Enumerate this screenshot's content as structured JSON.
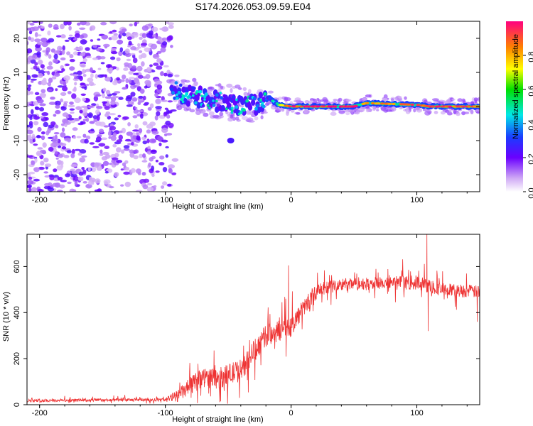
{
  "title": "S174.2026.053.09.59.E04",
  "chart_data": [
    {
      "type": "heatmap",
      "name": "spectrogram",
      "xlabel": "Height of straight line (km)",
      "ylabel": "Frequency (Hz)",
      "xlim": [
        -210,
        150
      ],
      "ylim": [
        -25,
        25
      ],
      "xticks": [
        -200,
        -100,
        0,
        100
      ],
      "yticks": [
        -20,
        -10,
        0,
        10,
        20
      ],
      "colorbar": {
        "label": "Normalized spectral amplitude",
        "range": [
          0,
          1
        ],
        "ticks": [
          0.0,
          0.2,
          0.4,
          0.6,
          0.8
        ],
        "tick_labels": [
          "0.0",
          "0.2",
          "0.4",
          "0.6",
          "0.8"
        ]
      },
      "noise_region_x": [
        -210,
        -95
      ],
      "signal_track": [
        {
          "x": -95,
          "y": 5,
          "amp": 0.3
        },
        {
          "x": -85,
          "y": 4,
          "amp": 0.35
        },
        {
          "x": -75,
          "y": 3,
          "amp": 0.35
        },
        {
          "x": -65,
          "y": 2,
          "amp": 0.3
        },
        {
          "x": -55,
          "y": 1.5,
          "amp": 0.25
        },
        {
          "x": -45,
          "y": 1,
          "amp": 0.3
        },
        {
          "x": -35,
          "y": 0.5,
          "amp": 0.4
        },
        {
          "x": -28,
          "y": 0,
          "amp": 0.45
        },
        {
          "x": -18,
          "y": 2.5,
          "amp": 0.5
        },
        {
          "x": -10,
          "y": 0.5,
          "amp": 0.6
        },
        {
          "x": 0,
          "y": 0,
          "amp": 0.85
        },
        {
          "x": 50,
          "y": 0,
          "amp": 0.9
        },
        {
          "x": 60,
          "y": 1,
          "amp": 0.75
        },
        {
          "x": 100,
          "y": 0.5,
          "amp": 0.8
        },
        {
          "x": 110,
          "y": 0,
          "amp": 0.85
        },
        {
          "x": 150,
          "y": 0,
          "amp": 0.8
        }
      ],
      "side_blob": {
        "x": -48,
        "y": -10,
        "amp": 0.25
      }
    },
    {
      "type": "line",
      "name": "snr",
      "xlabel": "Height of straight line (km)",
      "ylabel": "SNR (10 * v/v)",
      "xlim": [
        -210,
        150
      ],
      "ylim": [
        0,
        740
      ],
      "xticks": [
        -200,
        -100,
        0,
        100
      ],
      "yticks": [
        0,
        200,
        400,
        600
      ],
      "color": "#ee3333",
      "envelope": {
        "x": [
          -210,
          -100,
          -90,
          -80,
          -70,
          -60,
          -50,
          -40,
          -30,
          -20,
          -10,
          0,
          10,
          20,
          30,
          40,
          60,
          80,
          100,
          120,
          150
        ],
        "y": [
          18,
          22,
          40,
          80,
          120,
          110,
          130,
          150,
          230,
          300,
          320,
          340,
          420,
          490,
          510,
          520,
          525,
          530,
          530,
          500,
          490
        ]
      },
      "noise_amplitude": [
        [
          -210,
          15
        ],
        [
          -100,
          15
        ],
        [
          -90,
          60
        ],
        [
          -80,
          90
        ],
        [
          -60,
          100
        ],
        [
          -40,
          110
        ],
        [
          -20,
          110
        ],
        [
          0,
          100
        ],
        [
          20,
          70
        ],
        [
          60,
          60
        ],
        [
          100,
          70
        ],
        [
          150,
          60
        ]
      ],
      "spikes": [
        {
          "x": -2,
          "y": 605
        },
        {
          "x": 108,
          "y": 740
        },
        {
          "x": 109,
          "y": 320
        },
        {
          "x": 148,
          "y": 360
        }
      ]
    }
  ]
}
